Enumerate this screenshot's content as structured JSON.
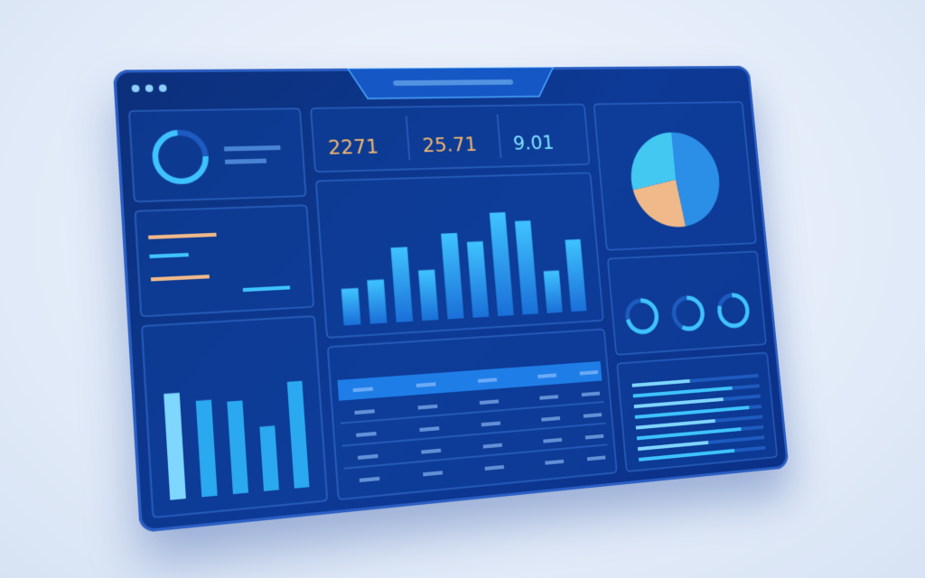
{
  "stats": [
    "2271",
    "25.71",
    "9.01"
  ],
  "bar_chart": {
    "values": [
      30,
      36,
      62,
      42,
      72,
      64,
      88,
      80,
      36,
      62
    ],
    "color": "#2aa8f0"
  },
  "small_bars": {
    "values": [
      68,
      62,
      60,
      42,
      70
    ],
    "color": "#2aa8f0"
  },
  "pie": {
    "values": [
      48,
      24,
      28
    ],
    "colors": [
      "#2b8fe8",
      "#f0b98a",
      "#43c8f2"
    ]
  },
  "gauges": [
    72,
    58,
    80
  ],
  "progress": [
    45,
    78,
    70,
    90,
    62,
    82,
    55,
    75
  ]
}
